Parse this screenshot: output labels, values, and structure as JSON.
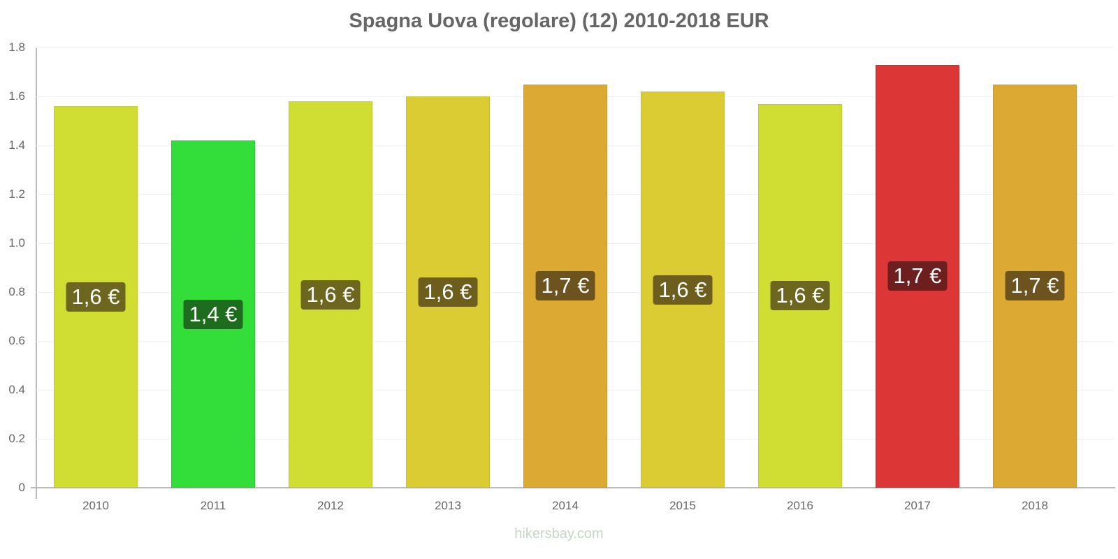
{
  "chart_data": {
    "type": "bar",
    "title": "Spagna Uova (regolare) (12) 2010-2018 EUR",
    "xlabel": "",
    "ylabel": "",
    "categories": [
      "2010",
      "2011",
      "2012",
      "2013",
      "2014",
      "2015",
      "2016",
      "2017",
      "2018"
    ],
    "values": [
      1.56,
      1.42,
      1.58,
      1.6,
      1.65,
      1.62,
      1.57,
      1.73,
      1.65
    ],
    "data_labels": [
      "1,6 €",
      "1,4 €",
      "1,6 €",
      "1,6 €",
      "1,7 €",
      "1,6 €",
      "1,6 €",
      "1,7 €",
      "1,7 €"
    ],
    "bar_colors": [
      "#d0dd33",
      "#33dd3a",
      "#d0dd33",
      "#dccc33",
      "#dcaa33",
      "#dccc33",
      "#d0dd33",
      "#dc3636",
      "#dcaa33"
    ],
    "label_colors": [
      "#6d661e",
      "#1e6d1e",
      "#6d661e",
      "#6d5e1e",
      "#6d541e",
      "#6d5e1e",
      "#6d661e",
      "#6d1e1e",
      "#6d541e"
    ],
    "yticks": [
      "0",
      "0.2",
      "0.4",
      "0.6",
      "0.8",
      "1.0",
      "1.2",
      "1.4",
      "1.6",
      "1.8"
    ],
    "ylim": [
      0,
      1.8
    ],
    "grid": true,
    "legend": "none"
  },
  "footer": {
    "watermark": "hikersbay.com"
  }
}
